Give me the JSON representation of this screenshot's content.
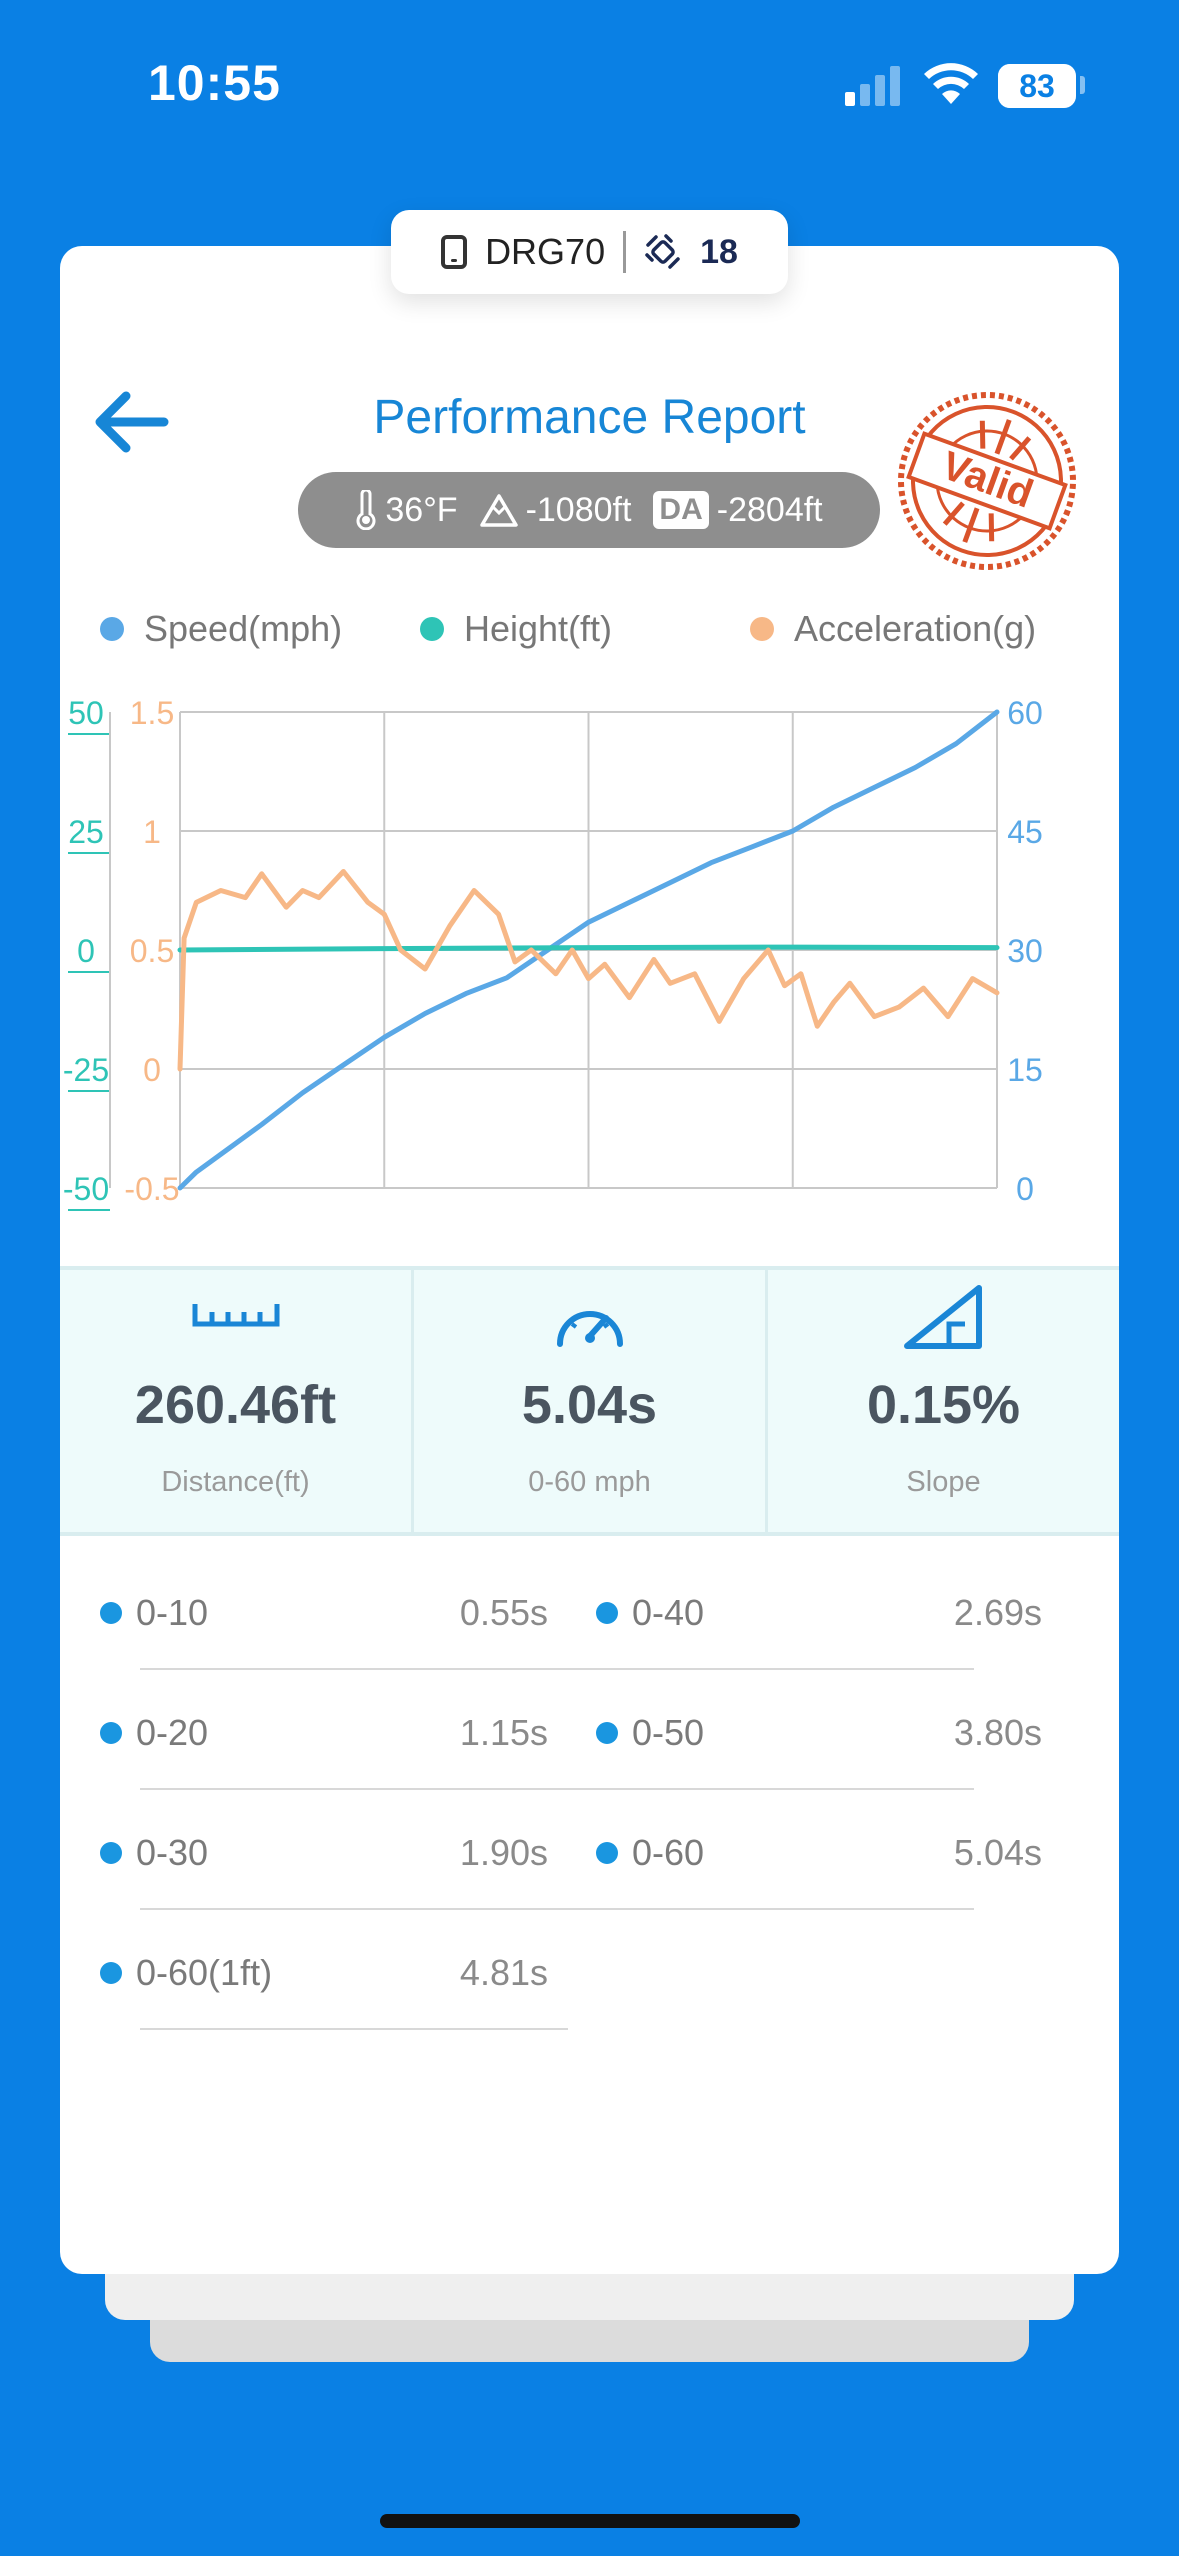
{
  "status_bar": {
    "time": "10:55",
    "battery": "83"
  },
  "device": {
    "name": "DRG70",
    "satellites": "18"
  },
  "header": {
    "title": "Performance Report"
  },
  "conditions": {
    "temperature": "36°F",
    "altitude": "-1080ft",
    "da_badge": "DA",
    "density_altitude": "-2804ft"
  },
  "stamp": {
    "text": "Valid",
    "color": "#D9532B"
  },
  "legend": [
    {
      "label": "Speed(mph)",
      "color": "#5AA8E6"
    },
    {
      "label": "Height(ft)",
      "color": "#2EC4B6"
    },
    {
      "label": "Acceleration(g)",
      "color": "#F7B887"
    }
  ],
  "chart_data": {
    "type": "line",
    "x_grid_divisions": 4,
    "y_grid_divisions": 4,
    "axes": {
      "height_left": {
        "ticks": [
          "50",
          "25",
          "0",
          "-25",
          "-50"
        ],
        "range": [
          -50,
          50
        ],
        "color": "#2EC4B6"
      },
      "accel_left": {
        "ticks": [
          "1.5",
          "1",
          "0.5",
          "0",
          "-0.5"
        ],
        "range": [
          -0.5,
          1.5
        ],
        "color": "#F7B887"
      },
      "speed_right": {
        "ticks": [
          "60",
          "45",
          "30",
          "15",
          "0"
        ],
        "range": [
          0,
          60
        ],
        "color": "#5AA8E6"
      }
    },
    "series": [
      {
        "name": "Speed(mph)",
        "axis": "speed_right",
        "color": "#5AA8E6",
        "x": [
          0,
          0.02,
          0.06,
          0.1,
          0.15,
          0.2,
          0.25,
          0.3,
          0.35,
          0.4,
          0.45,
          0.5,
          0.55,
          0.6,
          0.65,
          0.7,
          0.75,
          0.8,
          0.85,
          0.9,
          0.95,
          1.0
        ],
        "y": [
          0,
          2,
          5,
          8,
          12,
          15.5,
          19,
          22,
          24.5,
          26.5,
          30,
          33.5,
          36,
          38.5,
          41,
          43,
          45,
          48,
          50.5,
          53,
          56,
          60
        ]
      },
      {
        "name": "Height(ft)",
        "axis": "height_left",
        "color": "#2EC4B6",
        "x": [
          0,
          0.25,
          0.5,
          0.75,
          1.0
        ],
        "y": [
          0,
          0.3,
          0.5,
          0.6,
          0.5
        ]
      },
      {
        "name": "Acceleration(g)",
        "axis": "accel_left",
        "color": "#F7B887",
        "x": [
          0,
          0.005,
          0.02,
          0.05,
          0.08,
          0.1,
          0.13,
          0.15,
          0.17,
          0.2,
          0.23,
          0.25,
          0.27,
          0.3,
          0.33,
          0.36,
          0.39,
          0.41,
          0.43,
          0.46,
          0.48,
          0.5,
          0.52,
          0.55,
          0.58,
          0.6,
          0.63,
          0.66,
          0.69,
          0.72,
          0.74,
          0.76,
          0.78,
          0.8,
          0.82,
          0.85,
          0.88,
          0.91,
          0.94,
          0.97,
          1.0
        ],
        "y": [
          0,
          0.55,
          0.7,
          0.75,
          0.72,
          0.82,
          0.68,
          0.75,
          0.72,
          0.83,
          0.7,
          0.65,
          0.5,
          0.42,
          0.6,
          0.75,
          0.65,
          0.45,
          0.5,
          0.4,
          0.5,
          0.38,
          0.44,
          0.3,
          0.46,
          0.36,
          0.4,
          0.2,
          0.38,
          0.5,
          0.35,
          0.4,
          0.18,
          0.28,
          0.36,
          0.22,
          0.26,
          0.34,
          0.22,
          0.38,
          0.32
        ]
      }
    ]
  },
  "stats": [
    {
      "value": "260.46ft",
      "label": "Distance(ft)",
      "icon": "ruler-icon"
    },
    {
      "value": "5.04s",
      "label": "0-60 mph",
      "icon": "speedometer-icon"
    },
    {
      "value": "0.15%",
      "label": "Slope",
      "icon": "slope-icon"
    }
  ],
  "splits": [
    {
      "label": "0-10",
      "value": "0.55s"
    },
    {
      "label": "0-40",
      "value": "2.69s"
    },
    {
      "label": "0-20",
      "value": "1.15s"
    },
    {
      "label": "0-50",
      "value": "3.80s"
    },
    {
      "label": "0-30",
      "value": "1.90s"
    },
    {
      "label": "0-60",
      "value": "5.04s"
    },
    {
      "label": "0-60(1ft)",
      "value": "4.81s"
    }
  ]
}
